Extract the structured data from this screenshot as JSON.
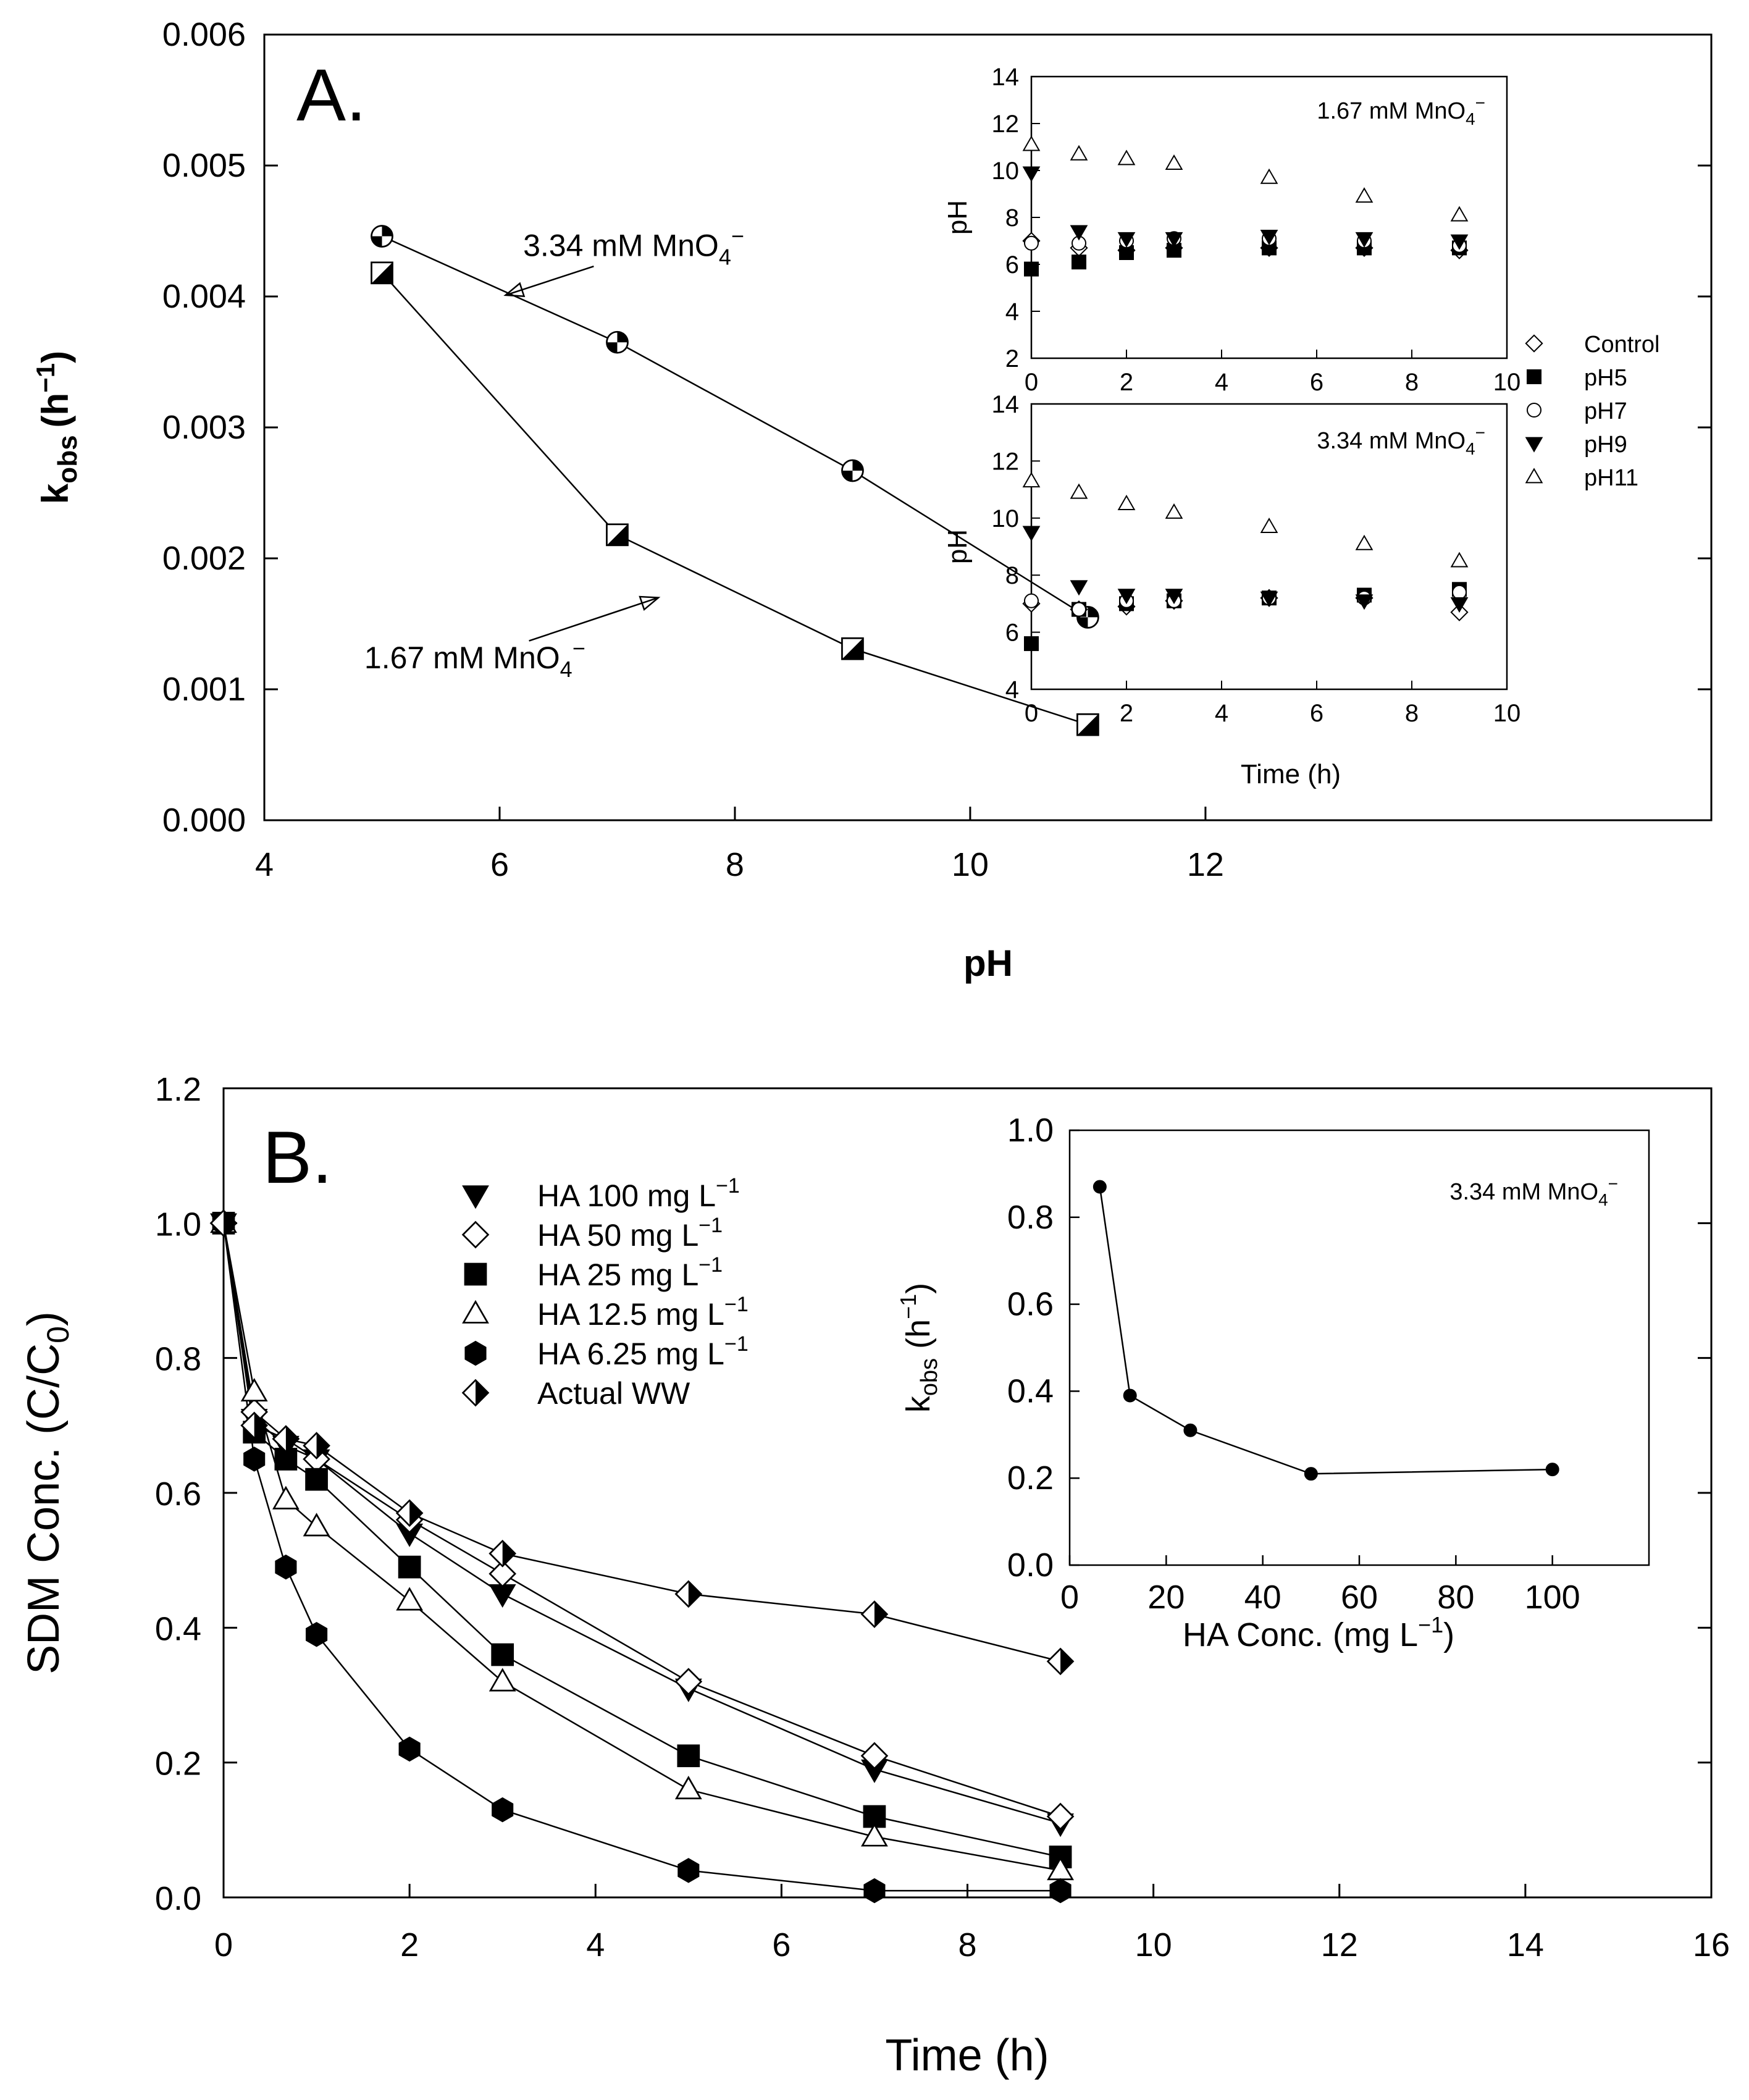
{
  "chart_data": [
    {
      "id": "A_main",
      "type": "scatter",
      "panel_label": "A.",
      "xlabel": "pH",
      "ylabel": "k",
      "ylabel_sub": "obs",
      "ylabel_units": "(h",
      "ylabel_units_sup": "−1",
      "ylabel_units_close": ")",
      "xlim": [
        4,
        16.3
      ],
      "ylim": [
        0,
        0.006
      ],
      "xticks": [
        4,
        6,
        8,
        10,
        12
      ],
      "yticks": [
        0.0,
        0.001,
        0.002,
        0.003,
        0.004,
        0.005,
        0.006
      ],
      "series": [
        {
          "key": "s334",
          "marker": "quarter-circle",
          "x": [
            5,
            7,
            9,
            11
          ],
          "y": [
            0.00446,
            0.00365,
            0.00267,
            0.00155
          ]
        },
        {
          "key": "s167",
          "marker": "half-square",
          "x": [
            5,
            7,
            9,
            11
          ],
          "y": [
            0.00418,
            0.00218,
            0.00131,
            0.00073
          ]
        }
      ],
      "annotations": [
        {
          "key": "a334",
          "text": "3.34 mM MnO",
          "sub": "4",
          "sup": "−",
          "text_x": 6.2,
          "text_y": 0.00431,
          "arrow_from": [
            6.8,
            0.00423
          ],
          "arrow_to": [
            6.05,
            0.00401
          ]
        },
        {
          "key": "a167",
          "text": "1.67 mM MnO",
          "sub": "4",
          "sup": "−",
          "text_x": 4.85,
          "text_y": 0.00116,
          "arrow_from": [
            6.25,
            0.00137
          ],
          "arrow_to": [
            7.35,
            0.0017
          ]
        }
      ]
    },
    {
      "id": "A_inset_top",
      "type": "scatter",
      "ylabel": "pH",
      "xlim": [
        0,
        10
      ],
      "ylim": [
        2,
        14
      ],
      "xticks": [
        0,
        2,
        4,
        6,
        8,
        10
      ],
      "yticks": [
        2,
        4,
        6,
        8,
        10,
        12,
        14
      ],
      "annotation": {
        "text": "1.67 mM MnO",
        "sub": "4",
        "sup": "−"
      },
      "series": [
        {
          "key": "control",
          "x": [
            0,
            1,
            2,
            3,
            5,
            7,
            9
          ],
          "y": [
            7.0,
            6.7,
            6.6,
            6.7,
            6.7,
            6.7,
            6.6
          ]
        },
        {
          "key": "pH5",
          "x": [
            0,
            1,
            2,
            3,
            5,
            7,
            9
          ],
          "y": [
            5.8,
            6.1,
            6.5,
            6.6,
            6.7,
            6.7,
            6.7
          ]
        },
        {
          "key": "pH7",
          "x": [
            0,
            1,
            2,
            3,
            5,
            7,
            9
          ],
          "y": [
            6.9,
            6.9,
            7.0,
            7.1,
            7.1,
            7.0,
            6.8
          ]
        },
        {
          "key": "pH9",
          "x": [
            0,
            1,
            2,
            3,
            5,
            7,
            9
          ],
          "y": [
            9.9,
            7.4,
            7.1,
            7.1,
            7.2,
            7.1,
            7.0
          ]
        },
        {
          "key": "pH11",
          "x": [
            0,
            1,
            2,
            3,
            5,
            7,
            9
          ],
          "y": [
            11.1,
            10.7,
            10.5,
            10.3,
            9.7,
            8.9,
            8.1
          ]
        }
      ]
    },
    {
      "id": "A_inset_bottom",
      "type": "scatter",
      "ylabel": "pH",
      "xlabel": "Time (h)",
      "xlim": [
        0,
        10
      ],
      "ylim": [
        4,
        14
      ],
      "xticks": [
        0,
        2,
        4,
        6,
        8,
        10
      ],
      "yticks": [
        4,
        6,
        8,
        10,
        12,
        14
      ],
      "annotation": {
        "text": "3.34 mM MnO",
        "sub": "4",
        "sup": "−"
      },
      "series": [
        {
          "key": "control",
          "x": [
            0,
            1,
            2,
            3,
            5,
            7,
            9
          ],
          "y": [
            7.0,
            6.8,
            6.9,
            7.1,
            7.2,
            7.2,
            6.7
          ]
        },
        {
          "key": "pH5",
          "x": [
            0,
            1,
            2,
            3,
            5,
            7,
            9
          ],
          "y": [
            5.6,
            6.8,
            7.0,
            7.1,
            7.2,
            7.3,
            7.5
          ]
        },
        {
          "key": "pH7",
          "x": [
            0,
            1,
            2,
            3,
            5,
            7,
            9
          ],
          "y": [
            7.1,
            6.8,
            7.1,
            7.1,
            7.2,
            7.2,
            7.4
          ]
        },
        {
          "key": "pH9",
          "x": [
            0,
            1,
            2,
            3,
            5,
            7,
            9
          ],
          "y": [
            9.5,
            7.6,
            7.3,
            7.3,
            7.2,
            7.1,
            7.0
          ]
        },
        {
          "key": "pH11",
          "x": [
            0,
            1,
            2,
            3,
            5,
            7,
            9
          ],
          "y": [
            11.3,
            10.9,
            10.5,
            10.2,
            9.7,
            9.1,
            8.5
          ]
        }
      ]
    },
    {
      "id": "A_inset_legend",
      "type": "legend",
      "entries": [
        {
          "key": "control",
          "label": "Control",
          "marker": "open-diamond"
        },
        {
          "key": "pH5",
          "label": "pH5",
          "marker": "filled-square"
        },
        {
          "key": "pH7",
          "label": "pH7",
          "marker": "open-circle"
        },
        {
          "key": "pH9",
          "label": "pH9",
          "marker": "filled-down-triangle"
        },
        {
          "key": "pH11",
          "label": "pH11",
          "marker": "open-up-triangle"
        }
      ]
    },
    {
      "id": "B_main",
      "type": "line",
      "panel_label": "B.",
      "xlabel": "Time (h)",
      "ylabel": "SDM Conc. (C/C",
      "ylabel_sub": "0",
      "ylabel_close": ")",
      "xlim": [
        0,
        16
      ],
      "ylim": [
        0,
        1.2
      ],
      "xticks": [
        0,
        2,
        4,
        6,
        8,
        10,
        12,
        14,
        16
      ],
      "yticks": [
        0.0,
        0.2,
        0.4,
        0.6,
        0.8,
        1.0,
        1.2
      ],
      "x": [
        0,
        0.33,
        0.67,
        1,
        2,
        3,
        5,
        7,
        9
      ],
      "series": [
        {
          "key": "ha100",
          "label": "HA 100 mg L",
          "sup": "−1",
          "marker": "filled-down-triangle",
          "y": [
            1.0,
            0.71,
            0.67,
            0.65,
            0.54,
            0.45,
            0.31,
            0.19,
            0.11
          ]
        },
        {
          "key": "ha50",
          "label": "HA 50 mg L",
          "sup": "−1",
          "marker": "open-diamond",
          "y": [
            1.0,
            0.72,
            0.68,
            0.65,
            0.56,
            0.48,
            0.32,
            0.21,
            0.12
          ]
        },
        {
          "key": "ha25",
          "label": "HA 25 mg L",
          "sup": "−1",
          "marker": "filled-square",
          "y": [
            1.0,
            0.69,
            0.65,
            0.62,
            0.49,
            0.36,
            0.21,
            0.12,
            0.06
          ]
        },
        {
          "key": "ha125",
          "label": "HA 12.5 mg L",
          "sup": "−1",
          "marker": "open-up-triangle",
          "y": [
            1.0,
            0.75,
            0.59,
            0.55,
            0.44,
            0.32,
            0.16,
            0.09,
            0.04
          ]
        },
        {
          "key": "ha625",
          "label": "HA 6.25 mg L",
          "sup": "−1",
          "marker": "filled-hexagon",
          "y": [
            1.0,
            0.65,
            0.49,
            0.39,
            0.22,
            0.13,
            0.04,
            0.01,
            0.01
          ]
        },
        {
          "key": "ww",
          "label": "Actual WW",
          "sup": "",
          "marker": "half-diamond",
          "y": [
            1.0,
            0.7,
            0.68,
            0.67,
            0.57,
            0.51,
            0.45,
            0.42,
            0.35
          ]
        }
      ]
    },
    {
      "id": "B_inset",
      "type": "line",
      "xlabel": "HA Conc. (mg L",
      "xlabel_sup": "−1",
      "xlabel_close": ")",
      "ylabel": "k",
      "ylabel_sub": "obs",
      "ylabel_units": " (h",
      "ylabel_units_sup": "−1",
      "ylabel_units_close": ")",
      "xlim": [
        0,
        120
      ],
      "ylim": [
        0,
        1.0
      ],
      "xticks": [
        0,
        20,
        40,
        60,
        80,
        100
      ],
      "yticks": [
        0.0,
        0.2,
        0.4,
        0.6,
        0.8,
        1.0
      ],
      "annotation": {
        "text": "3.34 mM MnO",
        "sub": "4",
        "sup": "−"
      },
      "x": [
        6.25,
        12.5,
        25,
        50,
        100
      ],
      "y": [
        0.87,
        0.39,
        0.31,
        0.21,
        0.22
      ]
    }
  ]
}
